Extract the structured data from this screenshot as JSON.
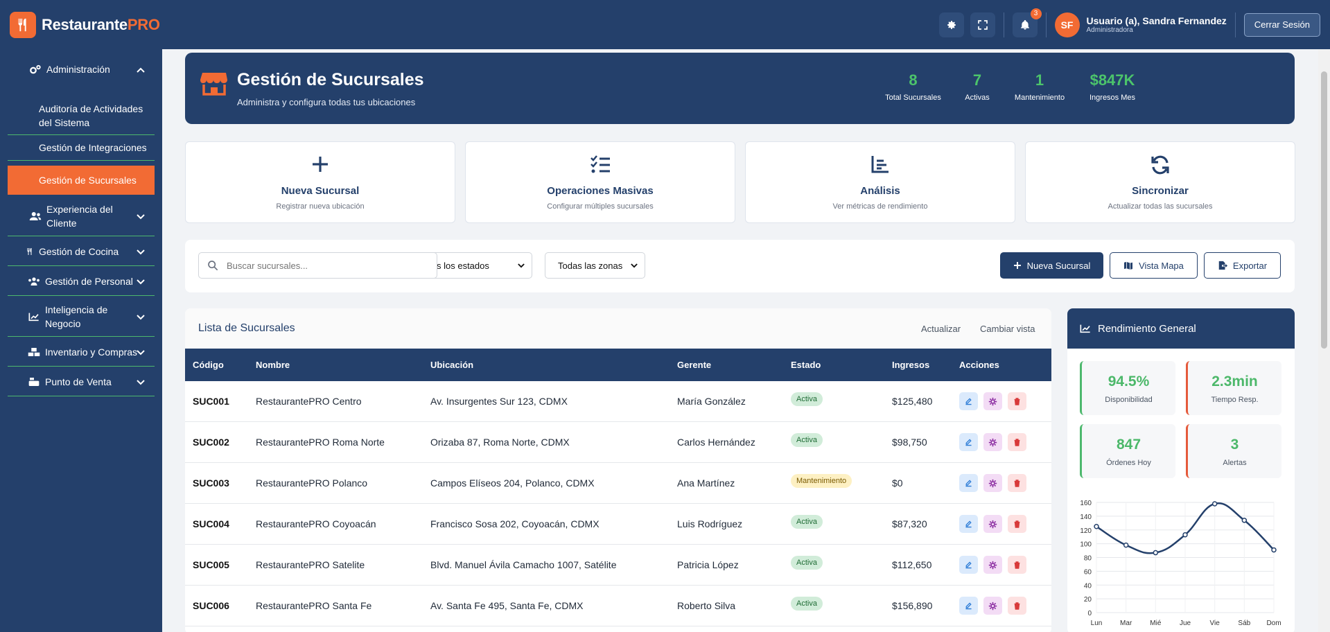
{
  "app": {
    "name_main": "Restaurante",
    "name_accent": "PRO"
  },
  "topbar": {
    "notif_count": "3",
    "avatar": "SF",
    "user_name": "Usuario (a), Sandra Fernandez",
    "user_role": "Administradora",
    "logout": "Cerrar Sesión"
  },
  "sidebar": {
    "admin": "Administración",
    "sub1": "Auditoría de Actividades del Sistema",
    "sub2": "Gestión de Integraciones",
    "sub3": "Gestión de Sucursales",
    "cliente": "Experiencia del Cliente",
    "cocina": "Gestión de Cocina",
    "personal": "Gestión de Personal",
    "bi": "Inteligencia de Negocio",
    "inventario": "Inventario y Compras",
    "pos": "Punto de Venta"
  },
  "hero": {
    "title": "Gestión de Sucursales",
    "subtitle": "Administra y configura todas tus ubicaciones",
    "stats": [
      {
        "v": "8",
        "l": "Total Sucursales"
      },
      {
        "v": "7",
        "l": "Activas"
      },
      {
        "v": "1",
        "l": "Mantenimiento"
      },
      {
        "v": "$847K",
        "l": "Ingresos Mes"
      }
    ]
  },
  "actions": [
    {
      "t": "Nueva Sucursal",
      "s": "Registrar nueva ubicación"
    },
    {
      "t": "Operaciones Masivas",
      "s": "Configurar múltiples sucursales"
    },
    {
      "t": "Análisis",
      "s": "Ver métricas de rendimiento"
    },
    {
      "t": "Sincronizar",
      "s": "Actualizar todas las sucursales"
    }
  ],
  "filters": {
    "search_placeholder": "Buscar sucursales...",
    "estado": "s los estados",
    "zona": "Todas las zonas",
    "new": "Nueva Sucursal",
    "map": "Vista Mapa",
    "export": "Exportar"
  },
  "list": {
    "title": "Lista de Sucursales",
    "refresh": "Actualizar",
    "toggle": "Cambiar vista",
    "cols": [
      "Código",
      "Nombre",
      "Ubicación",
      "Gerente",
      "Estado",
      "Ingresos",
      "Acciones"
    ],
    "rows": [
      [
        "SUC001",
        "RestaurantePRO Centro",
        "Av. Insurgentes Sur 123, CDMX",
        "María González",
        "Activa",
        "$125,480"
      ],
      [
        "SUC002",
        "RestaurantePRO Roma Norte",
        "Orizaba 87, Roma Norte, CDMX",
        "Carlos Hernández",
        "Activa",
        "$98,750"
      ],
      [
        "SUC003",
        "RestaurantePRO Polanco",
        "Campos Elíseos 204, Polanco, CDMX",
        "Ana Martínez",
        "Mantenimiento",
        "$0"
      ],
      [
        "SUC004",
        "RestaurantePRO Coyoacán",
        "Francisco Sosa 202, Coyoacán, CDMX",
        "Luis Rodríguez",
        "Activa",
        "$87,320"
      ],
      [
        "SUC005",
        "RestaurantePRO Satelite",
        "Blvd. Manuel Ávila Camacho 1007, Satélite",
        "Patricia López",
        "Activa",
        "$112,650"
      ],
      [
        "SUC006",
        "RestaurantePRO Santa Fe",
        "Av. Santa Fe 495, Santa Fe, CDMX",
        "Roberto Silva",
        "Activa",
        "$156,890"
      ]
    ]
  },
  "perf": {
    "title": "Rendimiento General",
    "kpis": [
      {
        "v": "94.5%",
        "l": "Disponibilidad"
      },
      {
        "v": "2.3min",
        "l": "Tiempo Resp."
      },
      {
        "v": "847",
        "l": "Órdenes Hoy"
      },
      {
        "v": "3",
        "l": "Alertas"
      }
    ]
  },
  "colors": {
    "navy": "#24406b",
    "orange": "#f26b34",
    "green": "#4cc46b"
  },
  "chart_data": {
    "type": "line",
    "categories": [
      "Lun",
      "Mar",
      "Mié",
      "Jue",
      "Vie",
      "Sáb",
      "Dom"
    ],
    "series": [
      {
        "values": [
          125,
          98,
          87,
          113,
          158,
          134,
          91
        ]
      }
    ],
    "yticks": [
      "0",
      "20",
      "40",
      "60",
      "80",
      "100",
      "120",
      "140",
      "160"
    ],
    "ylim": [
      0,
      160
    ],
    "grid": true
  }
}
